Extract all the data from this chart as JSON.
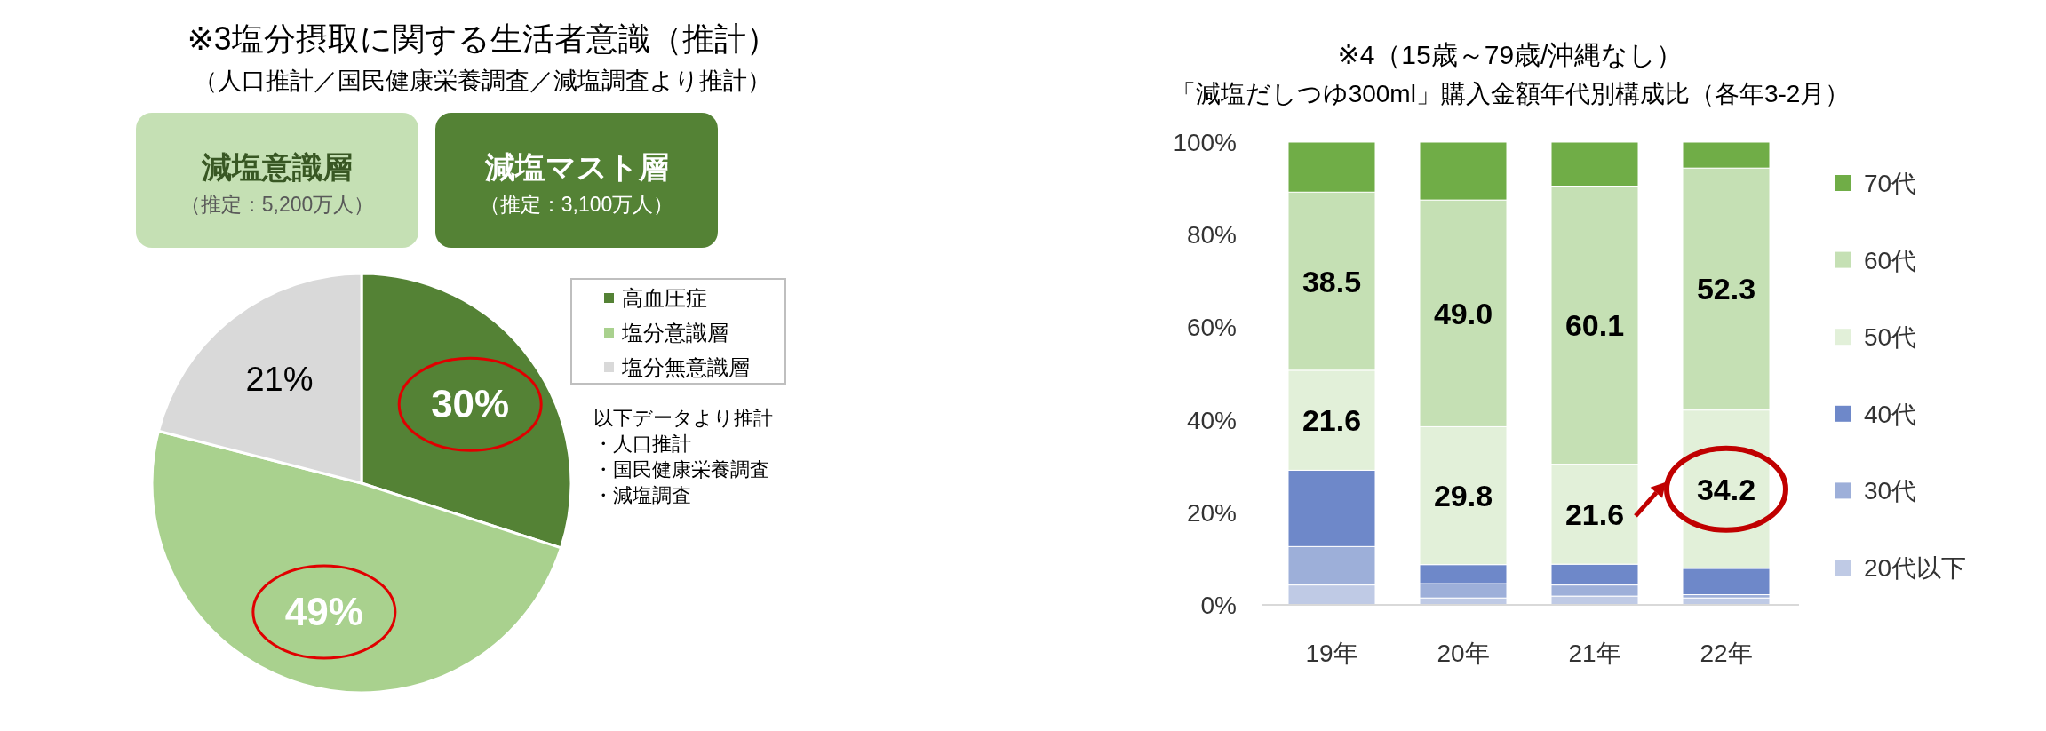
{
  "chart_data": [
    {
      "type": "pie",
      "title": "※3塩分摂取に関する生活者意識（推計）",
      "subtitle": "（人口推計／国民健康栄養調査／減塩調査より推計）",
      "categories": [
        "高血圧症",
        "塩分意識層",
        "塩分無意識層"
      ],
      "values": [
        30,
        49,
        21
      ],
      "colors": [
        "#548235",
        "#a9d18e",
        "#d9d9d9"
      ],
      "value_labels": [
        "30%",
        "49%",
        "21%"
      ],
      "legend": "right",
      "annotations": [
        "減塩意識層",
        "（推定：5,200万人）",
        "減塩マスト層",
        "（推定：3,100万人）",
        "以下データより推計",
        "・人口推計",
        "・国民健康栄養調査",
        "・減塩調査"
      ]
    },
    {
      "type": "bar",
      "stacked": true,
      "title": "※4（15歳～79歳/沖縄なし）",
      "subtitle": "「減塩だしつゆ300ml」購入金額年代別構成比（各年3-2月）",
      "categories": [
        "19年",
        "20年",
        "21年",
        "22年"
      ],
      "series": [
        {
          "name": "20代以下",
          "color": "#bfcae5",
          "values": [
            4.3,
            1.5,
            1.9,
            1.5
          ]
        },
        {
          "name": "30代",
          "color": "#9dafd9",
          "values": [
            8.3,
            3.1,
            2.4,
            0.7
          ]
        },
        {
          "name": "40代",
          "color": "#6e88c9",
          "values": [
            16.5,
            4.1,
            4.5,
            5.7
          ]
        },
        {
          "name": "50代",
          "color": "#e2f0d9",
          "values": [
            21.6,
            29.8,
            21.6,
            34.2
          ],
          "value_labels": [
            "21.6",
            "29.8",
            "21.6",
            "34.2"
          ]
        },
        {
          "name": "60代",
          "color": "#c5e0b4",
          "values": [
            38.5,
            49.0,
            60.1,
            52.3
          ],
          "value_labels": [
            "38.5",
            "49.0",
            "60.1",
            "52.3"
          ]
        },
        {
          "name": "70代",
          "color": "#70ad47",
          "values": [
            10.8,
            12.5,
            9.5,
            5.6
          ]
        }
      ],
      "ylim": [
        0,
        100
      ],
      "yticks": [
        {
          "value": 0,
          "label": "0%"
        },
        {
          "value": 20,
          "label": "20%"
        },
        {
          "value": 40,
          "label": "40%"
        },
        {
          "value": 60,
          "label": "60%"
        },
        {
          "value": 80,
          "label": "80%"
        },
        {
          "value": 100,
          "label": "100%"
        }
      ],
      "legend": "right"
    }
  ]
}
